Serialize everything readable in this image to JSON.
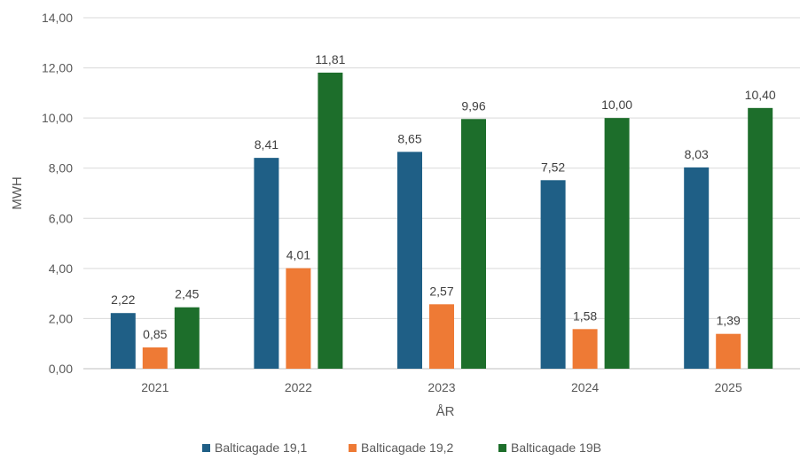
{
  "chart_data": {
    "type": "bar",
    "title": "",
    "xlabel": "ÅR",
    "ylabel": "MWH",
    "categories": [
      "2021",
      "2022",
      "2023",
      "2024",
      "2025"
    ],
    "ylim": [
      0,
      14
    ],
    "yticks": [
      "0,00",
      "2,00",
      "4,00",
      "6,00",
      "8,00",
      "10,00",
      "12,00",
      "14,00"
    ],
    "grid": true,
    "legend_position": "bottom",
    "series": [
      {
        "name": "Balticagade 19,1",
        "color": "#1f5f86",
        "values": [
          2.22,
          8.41,
          8.65,
          7.52,
          8.03
        ],
        "labels": [
          "2,22",
          "8,41",
          "8,65",
          "7,52",
          "8,03"
        ]
      },
      {
        "name": "Balticagade 19,2",
        "color": "#ee7a35",
        "values": [
          0.85,
          4.01,
          2.57,
          1.58,
          1.39
        ],
        "labels": [
          "0,85",
          "4,01",
          "2,57",
          "1,58",
          "1,39"
        ]
      },
      {
        "name": "Balticagade 19B",
        "color": "#1d6e2b",
        "values": [
          2.45,
          11.81,
          9.96,
          10.0,
          10.4
        ],
        "labels": [
          "2,45",
          "11,81",
          "9,96",
          "10,00",
          "10,40"
        ]
      }
    ]
  }
}
